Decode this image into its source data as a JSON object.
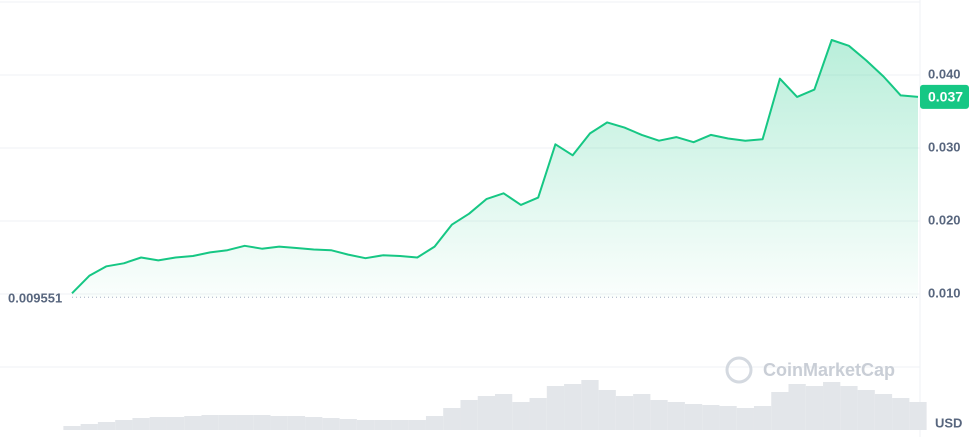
{
  "chart_data": {
    "type": "line",
    "color": "#16c784",
    "values": [
      0.0101,
      0.0125,
      0.0138,
      0.0142,
      0.015,
      0.0146,
      0.015,
      0.0152,
      0.0157,
      0.016,
      0.0166,
      0.0162,
      0.0165,
      0.0163,
      0.0161,
      0.016,
      0.0154,
      0.0149,
      0.0153,
      0.0152,
      0.015,
      0.0165,
      0.0195,
      0.021,
      0.023,
      0.0238,
      0.0222,
      0.0232,
      0.0305,
      0.029,
      0.032,
      0.0335,
      0.0328,
      0.0318,
      0.031,
      0.0315,
      0.0308,
      0.0318,
      0.0313,
      0.031,
      0.0312,
      0.0395,
      0.037,
      0.038,
      0.0448,
      0.044,
      0.042,
      0.0398,
      0.0372,
      0.037
    ],
    "volume": [
      4,
      6,
      8,
      10,
      12,
      13,
      13,
      14,
      15,
      15,
      15,
      15,
      14,
      14,
      13,
      12,
      11,
      10,
      10,
      10,
      10,
      14,
      22,
      30,
      34,
      36,
      28,
      32,
      44,
      46,
      50,
      40,
      34,
      36,
      30,
      28,
      26,
      25,
      24,
      22,
      24,
      38,
      46,
      44,
      48,
      44,
      40,
      36,
      32,
      28
    ],
    "ylim": [
      0,
      0.05
    ],
    "yticks": [
      {
        "value": 0.01,
        "label": "0.010"
      },
      {
        "value": 0.02,
        "label": "0.020"
      },
      {
        "value": 0.03,
        "label": "0.030"
      },
      {
        "value": 0.04,
        "label": "0.040"
      }
    ],
    "grid": true,
    "baseline": {
      "value": 0.009551,
      "label": "0.009551"
    },
    "current_price": {
      "value": 0.037,
      "label": "0.037"
    },
    "watermark": "CoinMarketCap",
    "currency": "USD"
  }
}
